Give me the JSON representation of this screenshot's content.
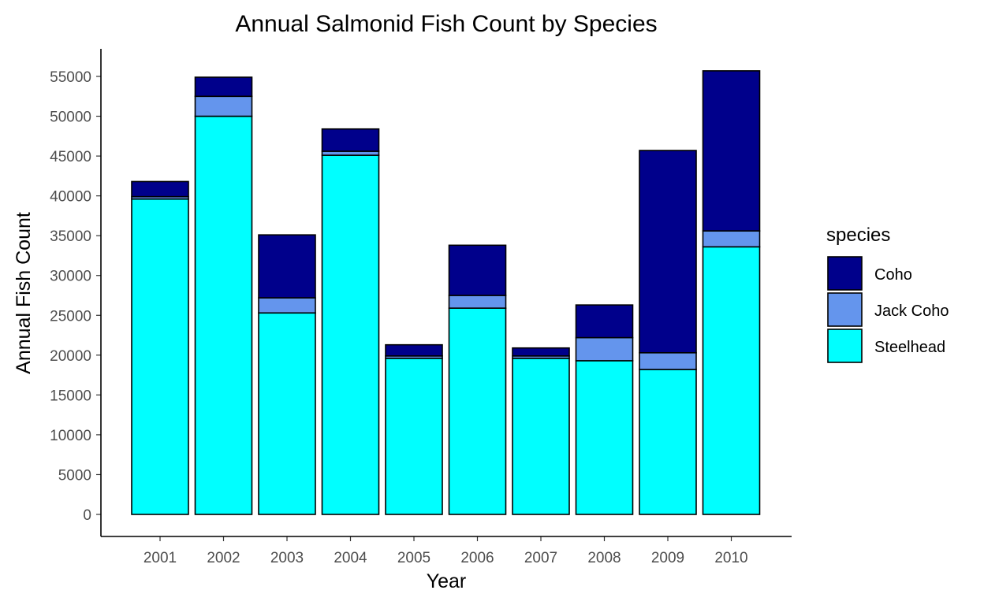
{
  "chart_data": {
    "type": "bar",
    "stacked": true,
    "title": "Annual Salmonid Fish Count by Species",
    "xlabel": "Year",
    "ylabel": "Annual Fish Count",
    "categories": [
      "2001",
      "2002",
      "2003",
      "2004",
      "2005",
      "2006",
      "2007",
      "2008",
      "2009",
      "2010"
    ],
    "ylim": [
      0,
      55000
    ],
    "yticks": [
      0,
      5000,
      10000,
      15000,
      20000,
      25000,
      30000,
      35000,
      40000,
      45000,
      50000,
      55000
    ],
    "grid": false,
    "legend": {
      "title": "species",
      "placement": "right",
      "entries": [
        "Coho",
        "Jack Coho",
        "Steelhead"
      ]
    },
    "series": [
      {
        "name": "Steelhead",
        "color": "#00FFFF",
        "values": [
          39600,
          50000,
          25300,
          45100,
          19600,
          25900,
          19600,
          19300,
          18200,
          33600
        ]
      },
      {
        "name": "Jack Coho",
        "color": "#6495ED",
        "values": [
          300,
          2500,
          1900,
          500,
          300,
          1600,
          300,
          2900,
          2100,
          2000
        ]
      },
      {
        "name": "Coho",
        "color": "#00008B",
        "values": [
          1900,
          2400,
          7900,
          2800,
          1400,
          6300,
          1000,
          4100,
          25400,
          20100
        ]
      }
    ]
  }
}
